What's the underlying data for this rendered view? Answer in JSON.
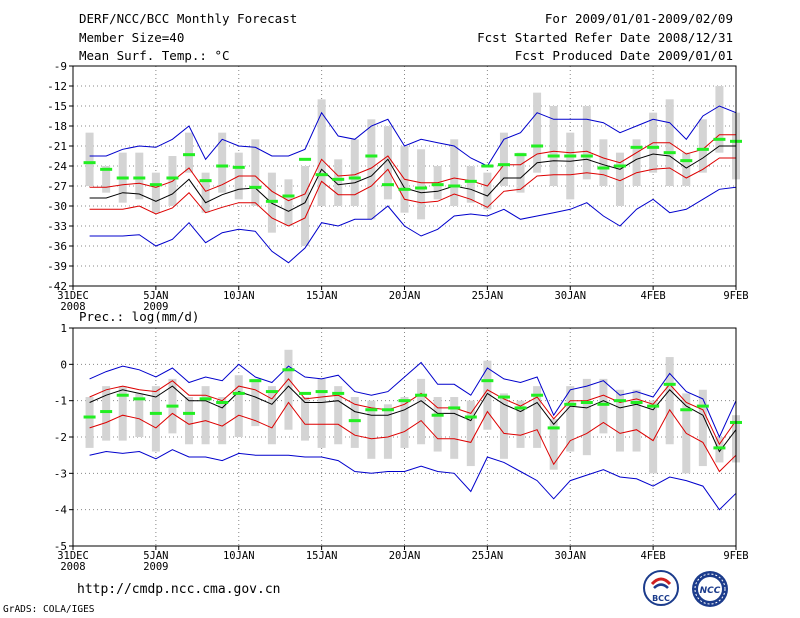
{
  "header": {
    "title": "DERF/NCC/BCC Monthly Forecast",
    "member_size": "Member Size=40",
    "period": "For 2009/01/01-2009/02/09",
    "fcst_started": "Fcst Started Refer Date 2008/12/31",
    "fcst_produced": "Fcst Produced Date 2009/01/01"
  },
  "footer": {
    "url": "http://cmdp.ncc.cma.gov.cn",
    "grads": "GrADS: COLA/IGES",
    "logo_bcc": "BCC",
    "logo_ncc": "NCC"
  },
  "colors": {
    "mean": "#000000",
    "std": "#dd0000",
    "extreme": "#0000cc",
    "box": "#d4d4d4",
    "climatology": "#22ee22"
  },
  "chart_data": [
    {
      "type": "line",
      "title": "Mean Surf. Temp.: °C",
      "ylim": [
        -42,
        -9
      ],
      "yticks": [
        -42,
        -39,
        -36,
        -33,
        -30,
        -27,
        -24,
        -21,
        -18,
        -15,
        -12,
        -9
      ],
      "xlim": [
        0,
        40
      ],
      "xticks": [
        {
          "x": 0,
          "label": "31DEC",
          "sub": "2008"
        },
        {
          "x": 5,
          "label": "5JAN",
          "sub": "2009"
        },
        {
          "x": 10,
          "label": "10JAN",
          "sub": ""
        },
        {
          "x": 15,
          "label": "15JAN",
          "sub": ""
        },
        {
          "x": 20,
          "label": "20JAN",
          "sub": ""
        },
        {
          "x": 25,
          "label": "25JAN",
          "sub": ""
        },
        {
          "x": 30,
          "label": "30JAN",
          "sub": ""
        },
        {
          "x": 35,
          "label": "4FEB",
          "sub": ""
        },
        {
          "x": 40,
          "label": "9FEB",
          "sub": ""
        }
      ],
      "x": [
        1,
        2,
        3,
        4,
        5,
        6,
        7,
        8,
        9,
        10,
        11,
        12,
        13,
        14,
        15,
        16,
        17,
        18,
        19,
        20,
        21,
        22,
        23,
        24,
        25,
        26,
        27,
        28,
        29,
        30,
        31,
        32,
        33,
        34,
        35,
        36,
        37,
        38,
        39,
        40
      ],
      "series": [
        {
          "name": "ensemble_mean",
          "values": [
            -28.8,
            -28.8,
            -28.0,
            -28.2,
            -29.3,
            -28.2,
            -26.0,
            -29.5,
            -28.3,
            -27.5,
            -27.3,
            -29.6,
            -30.8,
            -29.5,
            -24.5,
            -26.8,
            -26.5,
            -25.5,
            -23.0,
            -27.3,
            -28.0,
            -27.8,
            -27.0,
            -27.5,
            -28.5,
            -25.8,
            -25.8,
            -23.5,
            -23.2,
            -23.3,
            -23.0,
            -23.8,
            -24.5,
            -23.0,
            -22.2,
            -22.5,
            -24.3,
            -22.8,
            -21.0,
            -21.0
          ]
        },
        {
          "name": "mean_plus_std",
          "values": [
            -27.2,
            -27.2,
            -26.8,
            -26.6,
            -27.2,
            -26.3,
            -24.3,
            -27.8,
            -26.8,
            -25.5,
            -25.5,
            -27.8,
            -29.2,
            -28.2,
            -23.0,
            -25.5,
            -25.3,
            -24.3,
            -22.5,
            -26.0,
            -26.5,
            -26.5,
            -25.8,
            -26.2,
            -27.0,
            -23.8,
            -23.8,
            -22.2,
            -21.8,
            -22.0,
            -21.8,
            -22.8,
            -23.5,
            -22.0,
            -20.5,
            -20.5,
            -22.2,
            -21.5,
            -19.3,
            -19.3
          ]
        },
        {
          "name": "mean_minus_std",
          "values": [
            -30.5,
            -30.5,
            -30.5,
            -30.0,
            -31.2,
            -30.3,
            -28.0,
            -31.0,
            -30.2,
            -29.5,
            -29.5,
            -31.8,
            -33.0,
            -31.8,
            -26.3,
            -28.3,
            -28.3,
            -27.0,
            -24.5,
            -29.0,
            -29.5,
            -29.3,
            -28.2,
            -29.0,
            -30.2,
            -27.8,
            -27.5,
            -25.5,
            -25.3,
            -25.3,
            -25.0,
            -25.3,
            -26.2,
            -25.0,
            -24.5,
            -24.3,
            -25.8,
            -24.5,
            -22.8,
            -22.8
          ]
        },
        {
          "name": "member_max",
          "values": [
            -22.5,
            -22.5,
            -21.5,
            -21.0,
            -21.2,
            -20.0,
            -18.0,
            -23.0,
            -20.0,
            -21.0,
            -21.2,
            -22.5,
            -22.5,
            -21.5,
            -16.0,
            -19.5,
            -20.0,
            -18.0,
            -17.0,
            -21.0,
            -20.0,
            -20.5,
            -21.0,
            -22.8,
            -24.0,
            -20.0,
            -19.0,
            -16.0,
            -17.0,
            -17.0,
            -17.0,
            -17.5,
            -19.0,
            -18.0,
            -17.0,
            -17.5,
            -20.0,
            -16.5,
            -15.0,
            -16.0
          ]
        },
        {
          "name": "member_min",
          "values": [
            -34.5,
            -34.5,
            -34.5,
            -34.3,
            -36.0,
            -35.0,
            -32.5,
            -35.5,
            -34.0,
            -33.5,
            -33.8,
            -36.8,
            -38.5,
            -36.3,
            -32.5,
            -33.0,
            -32.0,
            -32.0,
            -30.0,
            -33.0,
            -34.5,
            -33.5,
            -31.5,
            -31.2,
            -31.5,
            -30.5,
            -32.0,
            -31.5,
            -31.0,
            -30.5,
            -29.5,
            -31.5,
            -33.0,
            -30.5,
            -29.0,
            -31.0,
            -30.5,
            -29.0,
            -27.5,
            -27.2
          ]
        },
        {
          "name": "box_top",
          "values": [
            -19.0,
            -24.0,
            -22.0,
            -22.0,
            -25.0,
            -22.5,
            -19.0,
            -25.0,
            -19.0,
            -22.0,
            -20.0,
            -25.0,
            -26.0,
            -24.0,
            -14.0,
            -23.0,
            -20.0,
            -17.0,
            -18.0,
            -21.0,
            -21.5,
            -24.0,
            -20.0,
            -24.0,
            -25.0,
            -19.0,
            -22.0,
            -13.0,
            -15.0,
            -19.0,
            -15.0,
            -20.0,
            -22.0,
            -20.0,
            -16.0,
            -14.0,
            -22.0,
            -17.0,
            -12.0,
            -16.0
          ]
        },
        {
          "name": "box_bottom",
          "values": [
            -27.0,
            -28.0,
            -29.5,
            -29.0,
            -31.0,
            -30.0,
            -25.0,
            -31.0,
            -28.0,
            -29.0,
            -30.0,
            -34.0,
            -33.0,
            -36.0,
            -30.0,
            -30.0,
            -30.0,
            -32.0,
            -29.0,
            -31.0,
            -32.0,
            -29.0,
            -30.0,
            -29.5,
            -30.5,
            -27.0,
            -28.0,
            -25.0,
            -27.0,
            -29.0,
            -26.0,
            -27.0,
            -30.0,
            -27.0,
            -25.0,
            -27.0,
            -27.0,
            -25.0,
            -22.0,
            -26.0
          ]
        },
        {
          "name": "climatology",
          "values": [
            -23.5,
            -24.5,
            -25.8,
            -25.8,
            -26.8,
            -25.8,
            -22.3,
            -26.2,
            -24.0,
            -24.2,
            -27.2,
            -29.3,
            -28.5,
            -23.0,
            -25.3,
            -26.0,
            -25.8,
            -22.5,
            -26.8,
            -27.5,
            -27.3,
            -26.8,
            -27.0,
            -26.3,
            -24.0,
            -23.8,
            -22.3,
            -21.0,
            -22.5,
            -22.5,
            -22.5,
            -24.3,
            -24.0,
            -21.2,
            -21.2,
            -22.0,
            -23.2,
            -21.5,
            -20.0,
            -20.3
          ]
        }
      ]
    },
    {
      "type": "line",
      "title": "Prec.: log(mm/d)",
      "ylim": [
        -5,
        1
      ],
      "yticks": [
        -5,
        -4,
        -3,
        -2,
        -1,
        0,
        1
      ],
      "xlim": [
        0,
        40
      ],
      "xticks": [
        {
          "x": 0,
          "label": "31DEC",
          "sub": "2008"
        },
        {
          "x": 5,
          "label": "5JAN",
          "sub": "2009"
        },
        {
          "x": 10,
          "label": "10JAN",
          "sub": ""
        },
        {
          "x": 15,
          "label": "15JAN",
          "sub": ""
        },
        {
          "x": 20,
          "label": "20JAN",
          "sub": ""
        },
        {
          "x": 25,
          "label": "25JAN",
          "sub": ""
        },
        {
          "x": 30,
          "label": "30JAN",
          "sub": ""
        },
        {
          "x": 35,
          "label": "4FEB",
          "sub": ""
        },
        {
          "x": 40,
          "label": "9FEB",
          "sub": ""
        }
      ],
      "x": [
        1,
        2,
        3,
        4,
        5,
        6,
        7,
        8,
        9,
        10,
        11,
        12,
        13,
        14,
        15,
        16,
        17,
        18,
        19,
        20,
        21,
        22,
        23,
        24,
        25,
        26,
        27,
        28,
        29,
        30,
        31,
        32,
        33,
        34,
        35,
        36,
        37,
        38,
        39,
        40
      ],
      "series": [
        {
          "name": "ensemble_mean",
          "values": [
            -1.05,
            -0.85,
            -0.7,
            -0.8,
            -0.9,
            -0.6,
            -1.0,
            -1.0,
            -1.2,
            -0.75,
            -0.9,
            -1.1,
            -0.6,
            -1.05,
            -1.05,
            -1.0,
            -1.3,
            -1.4,
            -1.4,
            -1.25,
            -1.0,
            -1.35,
            -1.35,
            -1.55,
            -0.8,
            -1.1,
            -1.3,
            -1.05,
            -1.65,
            -1.15,
            -1.2,
            -1.0,
            -1.2,
            -1.1,
            -1.25,
            -0.7,
            -1.15,
            -1.4,
            -2.4,
            -1.8
          ]
        },
        {
          "name": "mean_plus_std",
          "values": [
            -0.9,
            -0.7,
            -0.6,
            -0.7,
            -0.75,
            -0.45,
            -0.85,
            -0.85,
            -1.0,
            -0.6,
            -0.7,
            -0.95,
            -0.4,
            -0.95,
            -0.9,
            -0.85,
            -1.1,
            -1.2,
            -1.25,
            -1.1,
            -0.8,
            -1.2,
            -1.2,
            -1.35,
            -0.7,
            -0.95,
            -1.15,
            -0.9,
            -1.5,
            -1.0,
            -1.0,
            -0.85,
            -1.05,
            -0.95,
            -1.1,
            -0.55,
            -1.05,
            -1.25,
            -2.2,
            -1.55
          ]
        },
        {
          "name": "mean_minus_std",
          "values": [
            -1.75,
            -1.6,
            -1.4,
            -1.5,
            -1.75,
            -1.35,
            -1.65,
            -1.55,
            -1.7,
            -1.4,
            -1.55,
            -1.75,
            -1.05,
            -1.65,
            -1.65,
            -1.65,
            -1.95,
            -2.05,
            -2.0,
            -1.85,
            -1.55,
            -2.05,
            -2.05,
            -2.15,
            -1.3,
            -1.9,
            -1.95,
            -1.8,
            -2.75,
            -2.1,
            -1.9,
            -1.6,
            -1.9,
            -1.8,
            -2.1,
            -1.25,
            -1.9,
            -2.15,
            -2.95,
            -2.5
          ]
        },
        {
          "name": "member_max",
          "values": [
            -0.4,
            -0.2,
            -0.05,
            -0.15,
            -0.35,
            -0.1,
            -0.5,
            -0.35,
            -0.45,
            0.0,
            -0.35,
            -0.5,
            -0.05,
            -0.35,
            -0.4,
            -0.3,
            -0.75,
            -0.85,
            -0.75,
            -0.35,
            0.05,
            -0.55,
            -0.55,
            -0.85,
            -0.1,
            -0.4,
            -0.5,
            -0.35,
            -1.4,
            -0.7,
            -0.6,
            -0.45,
            -0.85,
            -0.75,
            -0.9,
            -0.25,
            -0.75,
            -0.95,
            -2.0,
            -1.0
          ]
        },
        {
          "name": "member_min",
          "values": [
            -2.5,
            -2.4,
            -2.45,
            -2.4,
            -2.6,
            -2.35,
            -2.55,
            -2.55,
            -2.65,
            -2.45,
            -2.5,
            -2.5,
            -2.5,
            -2.55,
            -2.55,
            -2.65,
            -2.95,
            -3.0,
            -2.95,
            -2.95,
            -2.8,
            -2.95,
            -3.0,
            -3.5,
            -2.55,
            -2.7,
            -2.95,
            -3.2,
            -3.7,
            -3.2,
            -3.05,
            -2.9,
            -3.1,
            -3.15,
            -3.35,
            -3.1,
            -3.2,
            -3.35,
            -4.0,
            -3.55
          ]
        },
        {
          "name": "box_top",
          "values": [
            -0.9,
            -0.6,
            -0.6,
            -0.8,
            -0.6,
            -0.4,
            -0.9,
            -0.6,
            -0.9,
            -0.3,
            -0.4,
            -0.6,
            0.4,
            -0.9,
            -0.4,
            -0.6,
            -0.9,
            -1.0,
            -1.1,
            -0.9,
            -0.4,
            -0.9,
            -0.9,
            -1.0,
            0.1,
            -0.8,
            -1.0,
            -0.6,
            -1.5,
            -0.6,
            -0.4,
            -0.4,
            -0.7,
            -0.7,
            -1.0,
            0.2,
            -0.8,
            -0.7,
            -2.0,
            -1.4
          ]
        },
        {
          "name": "box_bottom",
          "values": [
            -2.3,
            -2.1,
            -2.1,
            -2.0,
            -2.4,
            -1.9,
            -2.2,
            -2.2,
            -2.2,
            -2.0,
            -1.7,
            -2.2,
            -1.8,
            -2.1,
            -2.3,
            -2.2,
            -2.3,
            -2.6,
            -2.6,
            -2.3,
            -2.2,
            -2.4,
            -2.6,
            -2.8,
            -1.8,
            -2.6,
            -2.3,
            -2.3,
            -2.9,
            -2.4,
            -2.5,
            -1.9,
            -2.4,
            -2.4,
            -3.0,
            -2.2,
            -3.0,
            -2.8,
            -2.7,
            -2.7
          ]
        },
        {
          "name": "climatology",
          "values": [
            -1.45,
            -1.3,
            -0.85,
            -0.95,
            -1.35,
            -1.15,
            -1.35,
            -0.95,
            -1.05,
            -0.8,
            -0.45,
            -0.75,
            -0.15,
            -0.8,
            -0.75,
            -0.8,
            -1.55,
            -1.25,
            -1.25,
            -1.0,
            -0.85,
            -1.4,
            -1.2,
            -1.45,
            -0.45,
            -0.9,
            -1.2,
            -0.85,
            -1.75,
            -1.1,
            -1.05,
            -1.1,
            -1.0,
            -1.05,
            -1.15,
            -0.55,
            -1.25,
            -1.15,
            -2.3,
            -1.6
          ]
        }
      ]
    }
  ]
}
